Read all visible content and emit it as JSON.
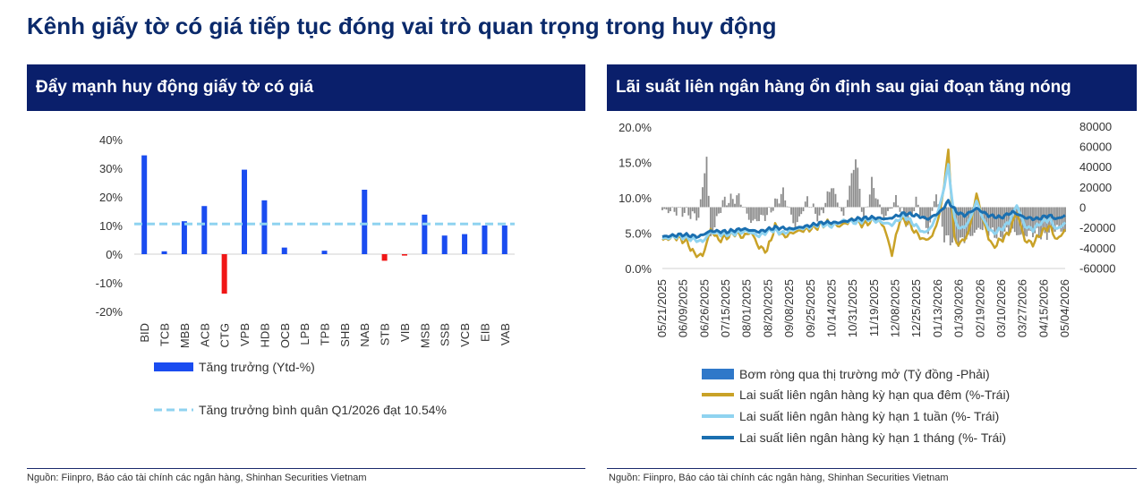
{
  "page_title": "Kênh giấy tờ có giá tiếp tục đóng vai trò quan trọng trong huy động",
  "colors": {
    "navy": "#0a1f6b",
    "bar_positive": "#1a4cf0",
    "bar_negative": "#f01616",
    "avg_line": "#8fd3f0",
    "net_injection": "#8c8c8c",
    "overnight": "#c9a227",
    "week1": "#8fd3f0",
    "month1": "#1a6fb0"
  },
  "left_panel": {
    "header": "Đẩy mạnh huy động giấy tờ có giá",
    "source": "Nguồn: Fiinpro, Báo cáo tài chính các ngân hàng, Shinhan Securities Vietnam"
  },
  "right_panel": {
    "header": "Lãi suất liên ngân hàng ổn định sau giai đoạn tăng nóng",
    "source": "Nguồn: Fiinpro, Báo cáo tài chính các ngân hàng, Shinhan Securities Vietnam"
  },
  "chart_data": [
    {
      "type": "bar",
      "categories": [
        "BID",
        "TCB",
        "MBB",
        "ACB",
        "CTG",
        "VPB",
        "HDB",
        "OCB",
        "LPB",
        "TPB",
        "SHB",
        "NAB",
        "STB",
        "VIB",
        "MSB",
        "SSB",
        "VCB",
        "EIB",
        "VAB"
      ],
      "series": [
        {
          "name": "Tăng trưởng (Ytd-%)",
          "values": [
            34.5,
            1.0,
            11.5,
            16.8,
            -13.8,
            29.5,
            18.8,
            2.3,
            0,
            1.2,
            0,
            22.5,
            -2.3,
            -0.5,
            13.8,
            6.5,
            7.0,
            10.0,
            10.0
          ]
        },
        {
          "name": "Tăng trưởng bình quân  Q1/2026 đạt 10.54%",
          "type": "line",
          "value": 10.54
        }
      ],
      "y_ticks": [
        "40%",
        "30%",
        "20%",
        "10%",
        "0%",
        "-10%",
        "-20%"
      ],
      "ylim": [
        -20,
        40
      ]
    },
    {
      "type": "line",
      "x_ticks": [
        "05/21/2025",
        "06/09/2025",
        "06/26/2025",
        "07/15/2025",
        "08/01/2025",
        "08/20/2025",
        "09/08/2025",
        "09/25/2025",
        "10/14/2025",
        "10/31/2025",
        "11/19/2025",
        "12/08/2025",
        "12/25/2025",
        "01/13/2026",
        "01/30/2026",
        "02/19/2026",
        "03/10/2026",
        "03/27/2026",
        "04/15/2026",
        "05/04/2026"
      ],
      "y_left_ticks": [
        "20.0%",
        "15.0%",
        "10.0%",
        "5.0%",
        "0.0%"
      ],
      "y_right_ticks": [
        "80000",
        "60000",
        "40000",
        "20000",
        "0",
        "-20000",
        "-40000",
        "-60000"
      ],
      "ylim_left": [
        0,
        20
      ],
      "ylim_right": [
        -60000,
        80000
      ],
      "series": [
        {
          "name": "Bơm ròng qua thị trường mở (Tỷ đồng -Phải)",
          "axis": "right",
          "type": "bar",
          "anchors": [
            [
              0,
              -3000
            ],
            [
              10,
              -4000
            ],
            [
              18,
              -10000
            ],
            [
              22,
              50000
            ],
            [
              24,
              -30000
            ],
            [
              30,
              5000
            ],
            [
              38,
              10000
            ],
            [
              44,
              -15000
            ],
            [
              52,
              -8000
            ],
            [
              60,
              15000
            ],
            [
              66,
              -20000
            ],
            [
              72,
              8000
            ],
            [
              78,
              -12000
            ],
            [
              84,
              22000
            ],
            [
              90,
              -10000
            ],
            [
              96,
              50000
            ],
            [
              100,
              -15000
            ],
            [
              104,
              25000
            ],
            [
              110,
              -12000
            ],
            [
              116,
              8000
            ],
            [
              122,
              -18000
            ],
            [
              126,
              6000
            ],
            [
              132,
              -25000
            ],
            [
              136,
              15000
            ],
            [
              140,
              -30000
            ],
            [
              146,
              -35000
            ],
            [
              152,
              -30000
            ],
            [
              158,
              -20000
            ],
            [
              164,
              -25000
            ],
            [
              168,
              -30000
            ],
            [
              172,
              -22000
            ],
            [
              178,
              -28000
            ],
            [
              184,
              -25000
            ],
            [
              190,
              -28000
            ],
            [
              196,
              -20000
            ],
            [
              200,
              -25000
            ]
          ]
        },
        {
          "name": "Lai suất liên ngân hàng kỳ hạn qua đêm (%-Trái)",
          "axis": "left",
          "type": "line",
          "anchors": [
            [
              0,
              4.0
            ],
            [
              6,
              4.5
            ],
            [
              12,
              3.8
            ],
            [
              16,
              2.0
            ],
            [
              20,
              1.8
            ],
            [
              24,
              5.5
            ],
            [
              28,
              4.0
            ],
            [
              32,
              4.5
            ],
            [
              36,
              5.0
            ],
            [
              40,
              4.5
            ],
            [
              44,
              5.2
            ],
            [
              48,
              3.0
            ],
            [
              52,
              2.5
            ],
            [
              56,
              6.0
            ],
            [
              60,
              4.5
            ],
            [
              66,
              5.2
            ],
            [
              72,
              5.5
            ],
            [
              78,
              6.0
            ],
            [
              82,
              6.5
            ],
            [
              88,
              6.0
            ],
            [
              94,
              6.8
            ],
            [
              100,
              6.2
            ],
            [
              106,
              7.0
            ],
            [
              110,
              6.0
            ],
            [
              114,
              2.0
            ],
            [
              118,
              7.0
            ],
            [
              122,
              6.5
            ],
            [
              126,
              5.0
            ],
            [
              130,
              4.0
            ],
            [
              134,
              4.5
            ],
            [
              138,
              8.0
            ],
            [
              142,
              16.5
            ],
            [
              145,
              4.0
            ],
            [
              148,
              3.5
            ],
            [
              152,
              5.0
            ],
            [
              156,
              10.5
            ],
            [
              160,
              6.0
            ],
            [
              164,
              3.0
            ],
            [
              168,
              4.0
            ],
            [
              172,
              5.0
            ],
            [
              176,
              8.0
            ],
            [
              180,
              4.0
            ],
            [
              184,
              3.5
            ],
            [
              188,
              5.0
            ],
            [
              192,
              6.0
            ],
            [
              196,
              4.0
            ],
            [
              200,
              5.5
            ]
          ]
        },
        {
          "name": "Lai suất liên ngân hàng kỳ hạn 1 tuần (%- Trái)",
          "axis": "left",
          "type": "line",
          "anchors": [
            [
              0,
              4.2
            ],
            [
              8,
              4.6
            ],
            [
              14,
              4.2
            ],
            [
              20,
              3.8
            ],
            [
              24,
              5.2
            ],
            [
              30,
              4.8
            ],
            [
              36,
              5.0
            ],
            [
              42,
              5.3
            ],
            [
              48,
              4.6
            ],
            [
              54,
              5.5
            ],
            [
              60,
              5.0
            ],
            [
              66,
              5.6
            ],
            [
              72,
              5.8
            ],
            [
              78,
              6.3
            ],
            [
              84,
              6.0
            ],
            [
              90,
              6.8
            ],
            [
              96,
              6.5
            ],
            [
              102,
              7.0
            ],
            [
              108,
              6.6
            ],
            [
              114,
              6.2
            ],
            [
              120,
              7.5
            ],
            [
              126,
              6.0
            ],
            [
              130,
              5.0
            ],
            [
              134,
              6.0
            ],
            [
              138,
              9.0
            ],
            [
              142,
              14.5
            ],
            [
              145,
              7.0
            ],
            [
              148,
              5.5
            ],
            [
              152,
              6.5
            ],
            [
              156,
              9.5
            ],
            [
              160,
              6.5
            ],
            [
              164,
              5.0
            ],
            [
              168,
              5.5
            ],
            [
              172,
              6.5
            ],
            [
              176,
              9.0
            ],
            [
              180,
              6.0
            ],
            [
              184,
              5.5
            ],
            [
              188,
              6.5
            ],
            [
              192,
              7.0
            ],
            [
              196,
              5.5
            ],
            [
              200,
              6.5
            ]
          ]
        },
        {
          "name": "Lai suất liên ngân hàng kỳ hạn 1 tháng (%- Trái)",
          "axis": "left",
          "type": "line",
          "anchors": [
            [
              0,
              4.5
            ],
            [
              10,
              4.8
            ],
            [
              18,
              4.5
            ],
            [
              24,
              5.3
            ],
            [
              32,
              5.2
            ],
            [
              40,
              5.6
            ],
            [
              48,
              5.2
            ],
            [
              56,
              5.8
            ],
            [
              64,
              5.6
            ],
            [
              72,
              6.0
            ],
            [
              80,
              6.5
            ],
            [
              88,
              6.5
            ],
            [
              96,
              7.0
            ],
            [
              104,
              7.2
            ],
            [
              112,
              7.0
            ],
            [
              120,
              7.8
            ],
            [
              126,
              7.5
            ],
            [
              132,
              7.0
            ],
            [
              138,
              8.0
            ],
            [
              142,
              9.5
            ],
            [
              146,
              8.0
            ],
            [
              150,
              7.5
            ],
            [
              156,
              8.5
            ],
            [
              162,
              7.5
            ],
            [
              168,
              7.2
            ],
            [
              174,
              8.0
            ],
            [
              180,
              7.2
            ],
            [
              186,
              7.0
            ],
            [
              192,
              7.5
            ],
            [
              196,
              7.0
            ],
            [
              200,
              7.5
            ]
          ]
        }
      ]
    }
  ]
}
